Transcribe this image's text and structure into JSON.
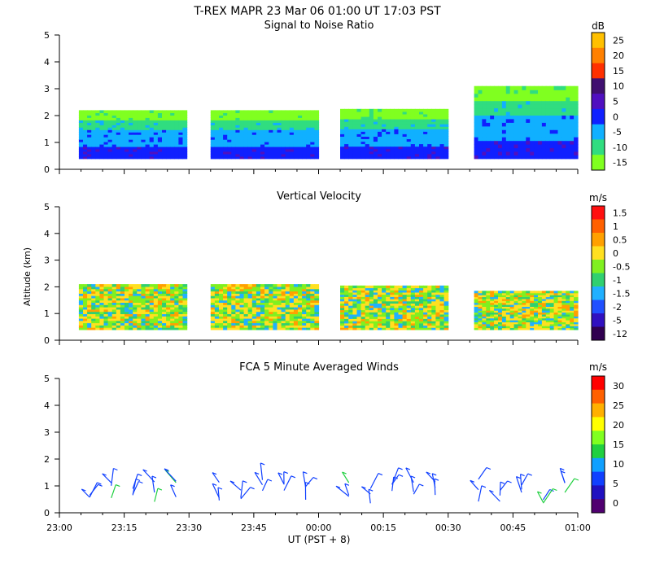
{
  "figure": {
    "title": "T-REX   MAPR 23 Mar 06   01:00 UT   17:03   PST",
    "xlabel": "UT  (PST + 8)",
    "x_ticks": [
      "23:00",
      "23:15",
      "23:30",
      "23:45",
      "00:00",
      "00:15",
      "00:30",
      "00:45",
      "01:00"
    ],
    "y_ticks": [
      "0",
      "1",
      "2",
      "3",
      "4",
      "5"
    ],
    "ylabel": "Altitude (km)"
  },
  "chart_data": [
    {
      "type": "heatmap",
      "title": "Signal to Noise Ratio",
      "units": "dB",
      "x_range_minutes": [
        0,
        120
      ],
      "ylim": [
        0,
        5
      ],
      "colorbar_labels": [
        "25",
        "20",
        "15",
        "10",
        "5",
        "0",
        "-5",
        "-10",
        "-15"
      ],
      "colors": [
        "#ffc000",
        "#ff8000",
        "#ff3000",
        "#401070",
        "#5010c0",
        "#1020ff",
        "#10b0ff",
        "#30dd80",
        "#80ff20"
      ],
      "data_blocks_minutes": [
        [
          4.5,
          29.5
        ],
        [
          35,
          60
        ],
        [
          65,
          90
        ],
        [
          96,
          121
        ]
      ],
      "top_km": [
        2.2,
        2.2,
        2.25,
        3.1
      ]
    },
    {
      "type": "heatmap",
      "title": "Vertical Velocity",
      "units": "m/s",
      "x_range_minutes": [
        0,
        120
      ],
      "ylim": [
        0,
        5
      ],
      "colorbar_labels": [
        "1.5",
        "1",
        "0.5",
        "0",
        "-0.5",
        "-1",
        "-1.5",
        "-2",
        "-5",
        "-12"
      ],
      "colors": [
        "#ff1010",
        "#ff6000",
        "#ffa000",
        "#ffe020",
        "#80f020",
        "#30d070",
        "#20b0ff",
        "#2050ff",
        "#3010c0",
        "#300050"
      ],
      "data_blocks_minutes": [
        [
          4.5,
          29.5
        ],
        [
          35,
          60
        ],
        [
          65,
          90
        ],
        [
          96,
          121
        ]
      ],
      "top_km": [
        2.1,
        2.1,
        2.05,
        1.85
      ]
    },
    {
      "type": "wind-barbs",
      "title": "FCA 5 Minute Averaged Winds",
      "units": "m/s",
      "x_range_minutes": [
        0,
        120
      ],
      "ylim": [
        0,
        5
      ],
      "colorbar_labels": [
        "30",
        "25",
        "20",
        "15",
        "10",
        "5",
        "0"
      ],
      "colors": [
        "#ff0000",
        "#ff6000",
        "#ffb000",
        "#ffff00",
        "#80ff20",
        "#20d040",
        "#10a0ff",
        "#1040ff",
        "#2010c0",
        "#500070"
      ],
      "barb_minutes": [
        7,
        12,
        17,
        22,
        27,
        37,
        42,
        47,
        52,
        57,
        67,
        72,
        77,
        82,
        87,
        97,
        102,
        107,
        112,
        117
      ]
    }
  ]
}
